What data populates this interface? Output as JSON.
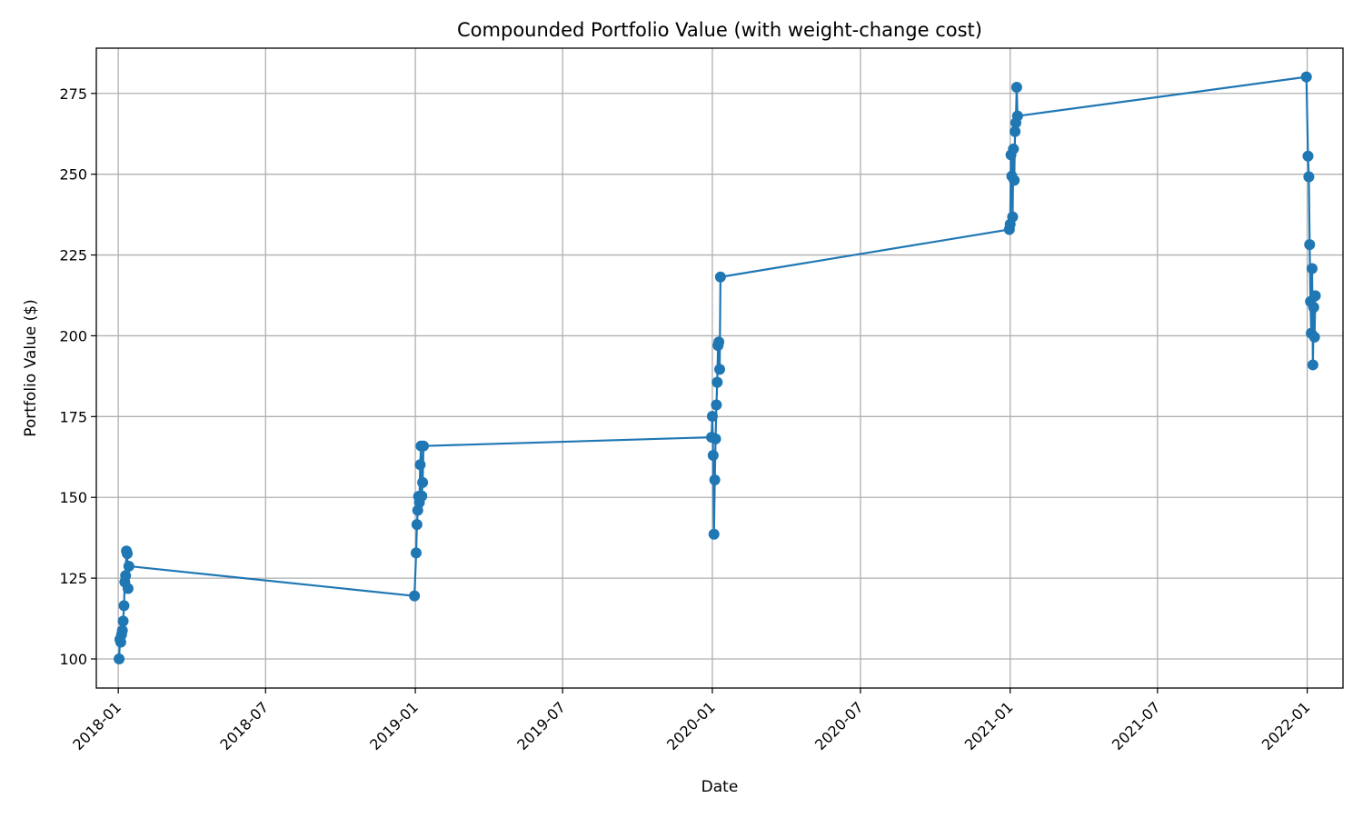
{
  "chart_data": {
    "type": "line",
    "title": "Compounded Portfolio Value (with weight-change cost)",
    "xlabel": "Date",
    "ylabel": "Portfolio Value ($)",
    "x_axis_type": "date",
    "xlim": [
      "2017-12-05",
      "2022-02-14"
    ],
    "ylim": [
      91,
      289
    ],
    "x_ticks": [
      "2018-01",
      "2018-07",
      "2019-01",
      "2019-07",
      "2020-01",
      "2020-07",
      "2021-01",
      "2021-07",
      "2022-01"
    ],
    "y_ticks": [
      100,
      125,
      150,
      175,
      200,
      225,
      250,
      275
    ],
    "grid": true,
    "legend": "none",
    "colors": {
      "series": "#1f77b4",
      "grid": "#b0b0b0",
      "axes": "#000000",
      "background": "#ffffff"
    },
    "series": [
      {
        "marker": "circle",
        "points": [
          [
            "2018-01-02",
            100.0
          ],
          [
            "2018-01-03",
            106.0
          ],
          [
            "2018-01-04",
            105.2
          ],
          [
            "2018-01-05",
            107.5
          ],
          [
            "2018-01-06",
            108.8
          ],
          [
            "2018-01-07",
            111.7
          ],
          [
            "2018-01-08",
            116.5
          ],
          [
            "2018-01-09",
            123.8
          ],
          [
            "2018-01-10",
            125.8
          ],
          [
            "2018-01-11",
            133.4
          ],
          [
            "2018-01-12",
            132.6
          ],
          [
            "2018-01-13",
            121.8
          ],
          [
            "2018-01-14",
            128.7
          ],
          [
            "2018-12-31",
            119.5
          ],
          [
            "2019-01-02",
            132.8
          ],
          [
            "2019-01-03",
            141.6
          ],
          [
            "2019-01-04",
            146.0
          ],
          [
            "2019-01-05",
            150.3
          ],
          [
            "2019-01-06",
            148.4
          ],
          [
            "2019-01-07",
            160.1
          ],
          [
            "2019-01-08",
            165.9
          ],
          [
            "2019-01-09",
            150.4
          ],
          [
            "2019-01-10",
            154.6
          ],
          [
            "2019-01-11",
            165.9
          ],
          [
            "2019-12-31",
            168.6
          ],
          [
            "2020-01-01",
            175.1
          ],
          [
            "2020-01-02",
            163.0
          ],
          [
            "2020-01-03",
            138.6
          ],
          [
            "2020-01-04",
            155.4
          ],
          [
            "2020-01-05",
            168.1
          ],
          [
            "2020-01-06",
            178.6
          ],
          [
            "2020-01-07",
            185.6
          ],
          [
            "2020-01-08",
            197.0
          ],
          [
            "2020-01-09",
            198.1
          ],
          [
            "2020-01-10",
            189.6
          ],
          [
            "2020-01-11",
            218.2
          ],
          [
            "2020-12-31",
            232.9
          ],
          [
            "2021-01-01",
            234.5
          ],
          [
            "2021-01-02",
            256.0
          ],
          [
            "2021-01-03",
            249.4
          ],
          [
            "2021-01-04",
            236.8
          ],
          [
            "2021-01-05",
            257.8
          ],
          [
            "2021-01-06",
            248.1
          ],
          [
            "2021-01-07",
            263.2
          ],
          [
            "2021-01-08",
            265.9
          ],
          [
            "2021-01-09",
            276.9
          ],
          [
            "2021-01-10",
            268.0
          ],
          [
            "2021-12-31",
            280.1
          ],
          [
            "2022-01-02",
            255.6
          ],
          [
            "2022-01-03",
            249.2
          ],
          [
            "2022-01-04",
            228.2
          ],
          [
            "2022-01-05",
            210.6
          ],
          [
            "2022-01-06",
            200.8
          ],
          [
            "2022-01-07",
            220.8
          ],
          [
            "2022-01-08",
            191.0
          ],
          [
            "2022-01-09",
            208.8
          ],
          [
            "2022-01-10",
            199.6
          ],
          [
            "2022-01-11",
            212.4
          ]
        ]
      }
    ]
  }
}
